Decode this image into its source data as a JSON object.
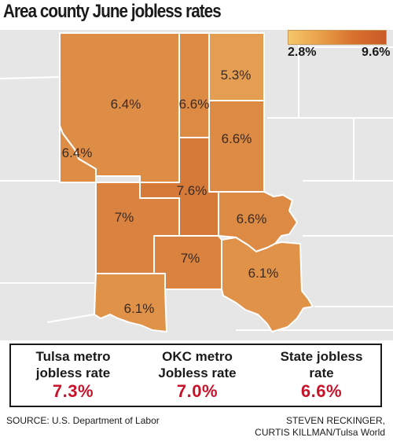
{
  "title": "Area county June jobless rates",
  "legend": {
    "min_label": "2.8%",
    "max_label": "9.6%",
    "min_value": 2.8,
    "max_value": 9.6,
    "color_low": "#f5c66a",
    "color_high": "#c95a26"
  },
  "counties": [
    {
      "label": "6.4%",
      "value": 6.4
    },
    {
      "label": "6.6%",
      "value": 6.6
    },
    {
      "label": "5.3%",
      "value": 5.3
    },
    {
      "label": "6.6%",
      "value": 6.6
    },
    {
      "label": "6.4%",
      "value": 6.4
    },
    {
      "label": "7.6%",
      "value": 7.6
    },
    {
      "label": "7%",
      "value": 7.0
    },
    {
      "label": "6.6%",
      "value": 6.6
    },
    {
      "label": "7%",
      "value": 7.0
    },
    {
      "label": "6.1%",
      "value": 6.1
    },
    {
      "label": "6.1%",
      "value": 6.1
    }
  ],
  "stats": {
    "tulsa": {
      "label": "Tulsa metro\njobless rate",
      "value": "7.3%"
    },
    "okc": {
      "label": "OKC metro\nJobless rate",
      "value": "7.0%"
    },
    "state": {
      "label": "State jobless\nrate",
      "value": "6.6%"
    }
  },
  "source": "SOURCE:  U.S. Department of Labor",
  "credit": "STEVEN RECKINGER,\nCURTIS KILLMAN/Tulsa World",
  "colors": {
    "background_land": "#e6e6e6",
    "stat_value": "#c8122a"
  }
}
